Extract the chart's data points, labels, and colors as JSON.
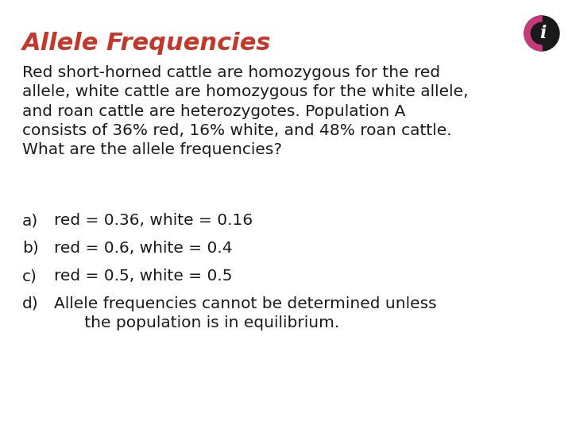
{
  "title": "Allele Frequencies",
  "title_color": "#C0392B",
  "title_fontsize": 22,
  "body_text": "Red short-horned cattle are homozygous for the red\nallele, white cattle are homozygous for the white allele,\nand roan cattle are heterozygotes. Population A\nconsists of 36% red, 16% white, and 48% roan cattle.\nWhat are the allele frequencies?",
  "body_fontsize": 14.5,
  "body_color": "#1a1a1a",
  "options": [
    {
      "label": "a)",
      "text": "red = 0.36, white = 0.16"
    },
    {
      "label": "b)",
      "text": "red = 0.6, white = 0.4"
    },
    {
      "label": "c)",
      "text": "red = 0.5, white = 0.5"
    },
    {
      "label": "d)",
      "text": "Allele frequencies cannot be determined unless\n      the population is in equilibrium."
    }
  ],
  "option_fontsize": 14.5,
  "option_color": "#1a1a1a",
  "background_color": "#ffffff",
  "icon_ring_color": "#c8397a",
  "icon_dark_color": "#1a1a1a",
  "icon_letter": "i",
  "icon_letter_color": "#ffffff"
}
